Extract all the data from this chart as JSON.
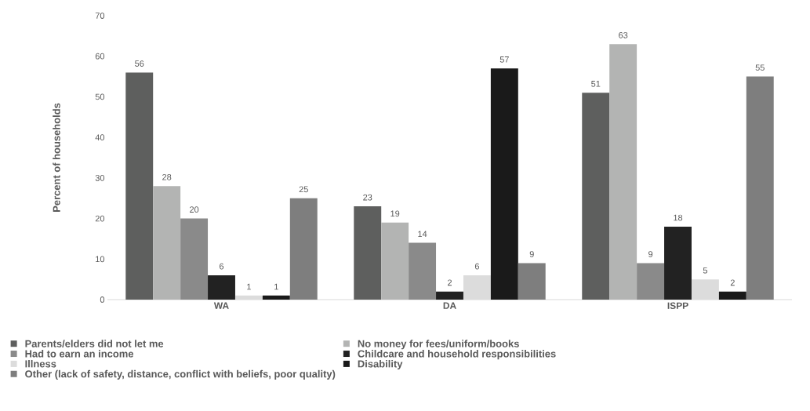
{
  "chart_data": {
    "type": "bar",
    "ylabel": "Percent of households",
    "categories": [
      "WA",
      "DA",
      "ISPP"
    ],
    "series": [
      {
        "name": "Parents/elders did not let me",
        "color": "#5e5f5e",
        "values": [
          56,
          23,
          51
        ]
      },
      {
        "name": "No money for fees/uniform/books",
        "color": "#b3b4b3",
        "values": [
          28,
          19,
          63
        ]
      },
      {
        "name": "Had to earn an income",
        "color": "#8a8a8a",
        "values": [
          20,
          14,
          9
        ]
      },
      {
        "name": "Childcare and household responsibilities",
        "color": "#222222",
        "values": [
          6,
          2,
          18
        ]
      },
      {
        "name": "Illness",
        "color": "#dcdcdc",
        "values": [
          1,
          6,
          5
        ]
      },
      {
        "name": "Disability",
        "color": "#1a1a1a",
        "values": [
          1,
          57,
          2
        ]
      },
      {
        "name": "Other (lack of safety, distance, conflict with beliefs, poor quality)",
        "color": "#7e7e7e",
        "values": [
          25,
          9,
          55
        ]
      }
    ],
    "ylim": [
      0,
      70
    ],
    "yticks": [
      0,
      10,
      20,
      30,
      40,
      50,
      60,
      70
    ],
    "data_labels": true,
    "legend": "bottom",
    "grid": false
  }
}
